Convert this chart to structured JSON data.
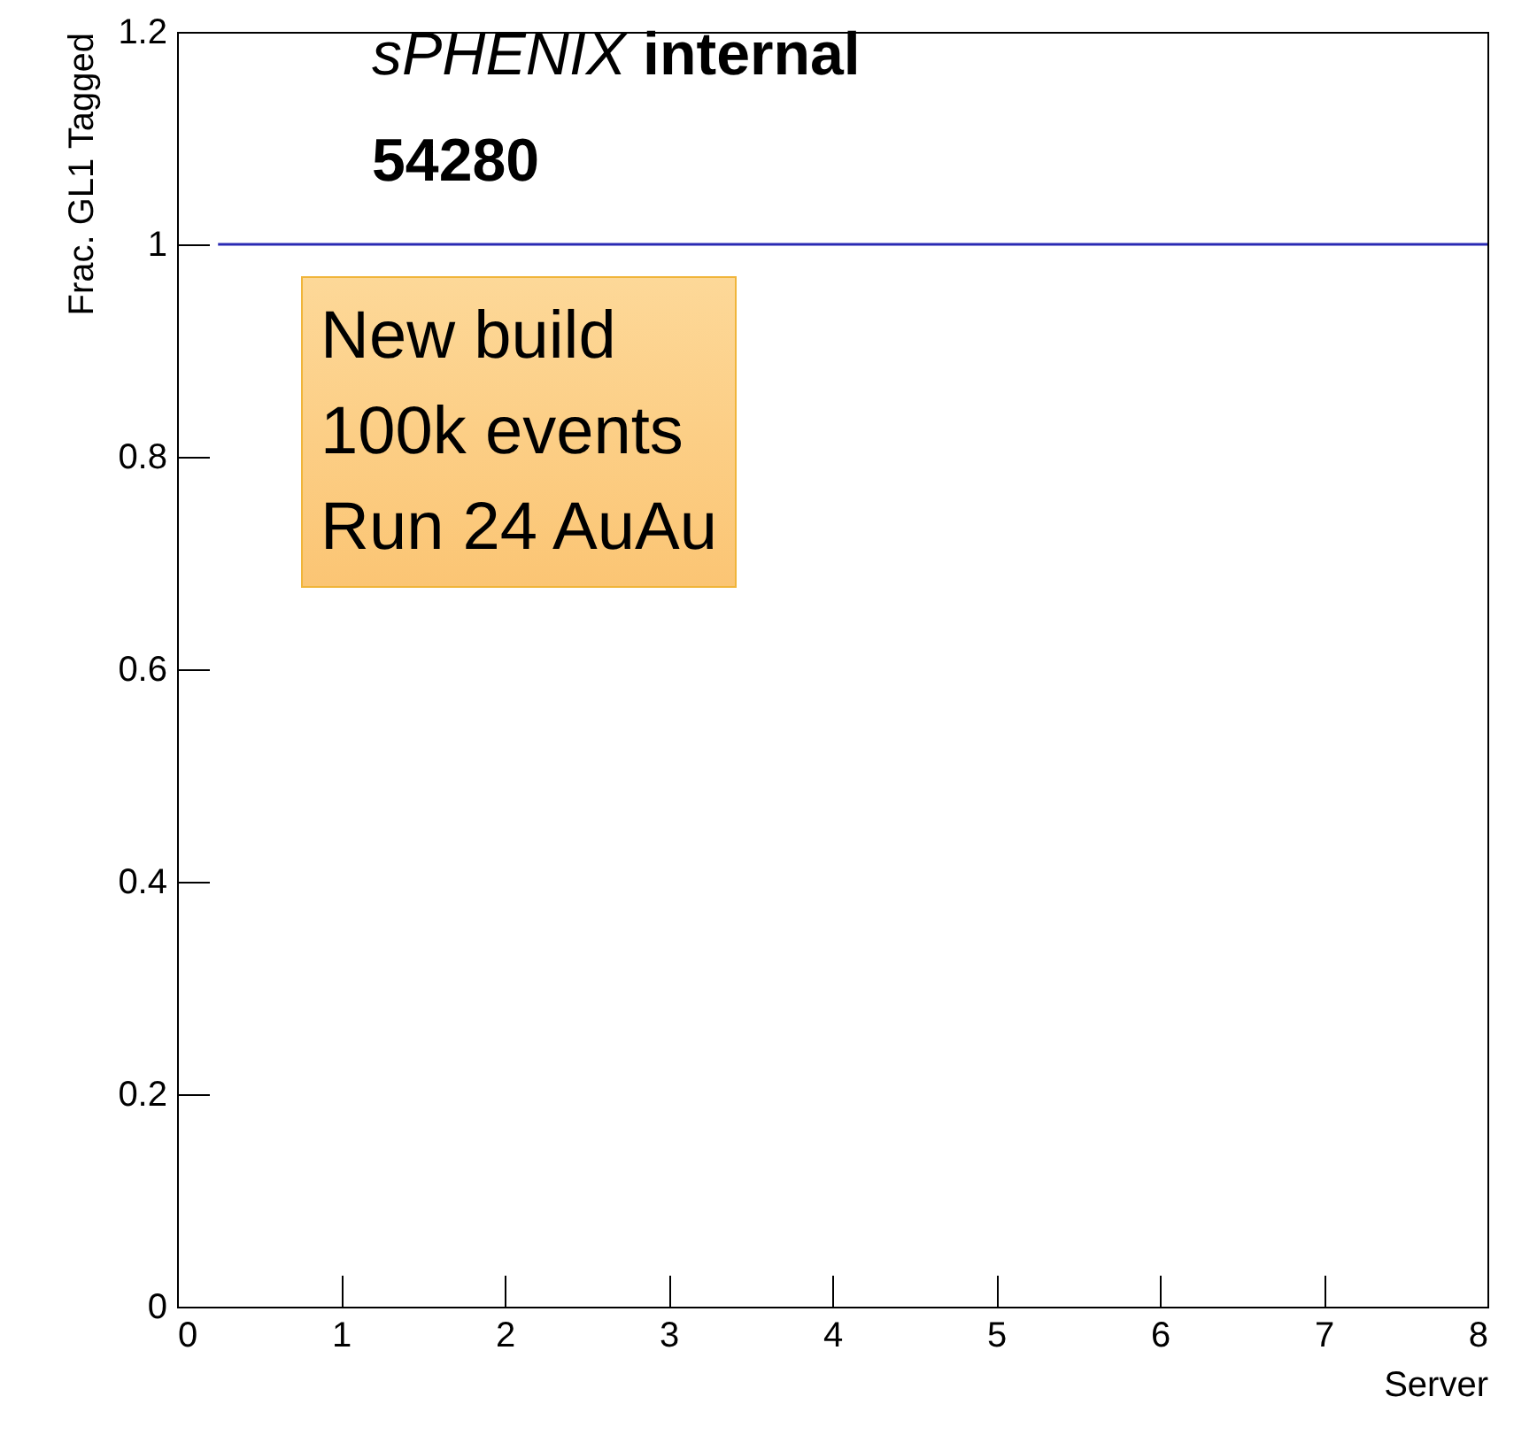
{
  "chart_data": {
    "type": "line",
    "xlabel": "Server",
    "ylabel": "Frac. GL1 Tagged",
    "annotations": [
      "sPHENIX internal",
      "54280",
      "New build\n100k events\nRun 24 AuAu"
    ],
    "series": [
      {
        "color": "#2a2ab4",
        "x": [
          0.25,
          8
        ],
        "values": [
          1,
          1
        ]
      }
    ],
    "xlim": [
      0,
      8
    ],
    "xticks": [
      0,
      1,
      2,
      3,
      4,
      5,
      6,
      7,
      8
    ],
    "ylim": [
      0,
      1.2
    ],
    "yticks": [
      0,
      0.2,
      0.4,
      0.6,
      0.8,
      1,
      1.2
    ],
    "grid": false,
    "marker": "none",
    "line_style": "solid"
  }
}
